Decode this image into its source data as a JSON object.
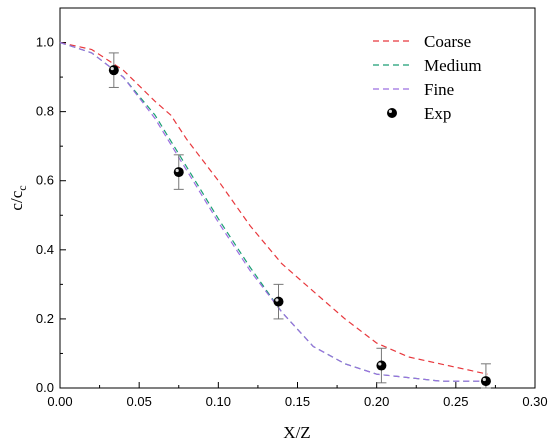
{
  "chart_data": {
    "type": "line",
    "title": "",
    "xlabel": "X/Z",
    "ylabel": {
      "main": "c/c",
      "sub": "c"
    },
    "xlim": [
      0,
      0.3
    ],
    "ylim": [
      0,
      1.1
    ],
    "xticks": [
      "0.00",
      "0.05",
      "0.10",
      "0.15",
      "0.20",
      "0.25",
      "0.30"
    ],
    "yticks": [
      "0.0",
      "0.2",
      "0.4",
      "0.6",
      "0.8",
      "1.0"
    ],
    "grid": false,
    "legend_position": "top-right",
    "series": [
      {
        "name": "Coarse",
        "style": "dashed",
        "color": "#e8383d",
        "x": [
          0.0,
          0.02,
          0.04,
          0.06,
          0.07,
          0.08,
          0.1,
          0.12,
          0.14,
          0.16,
          0.18,
          0.2,
          0.22,
          0.24,
          0.26,
          0.27
        ],
        "y": [
          1.0,
          0.98,
          0.92,
          0.83,
          0.79,
          0.72,
          0.6,
          0.47,
          0.36,
          0.28,
          0.2,
          0.13,
          0.09,
          0.07,
          0.05,
          0.04
        ]
      },
      {
        "name": "Medium",
        "style": "dashed",
        "color": "#1a9e73",
        "x": [
          0.0,
          0.02,
          0.04,
          0.06,
          0.08,
          0.1,
          0.12,
          0.14,
          0.16,
          0.18,
          0.2,
          0.22,
          0.24,
          0.26,
          0.27
        ],
        "y": [
          1.0,
          0.97,
          0.9,
          0.79,
          0.64,
          0.49,
          0.35,
          0.22,
          0.12,
          0.07,
          0.04,
          0.03,
          0.02,
          0.02,
          0.02
        ]
      },
      {
        "name": "Fine",
        "style": "dashed",
        "color": "#9c6fe0",
        "x": [
          0.0,
          0.02,
          0.04,
          0.06,
          0.08,
          0.1,
          0.12,
          0.14,
          0.16,
          0.18,
          0.2,
          0.22,
          0.24,
          0.26,
          0.27
        ],
        "y": [
          1.0,
          0.97,
          0.9,
          0.78,
          0.63,
          0.48,
          0.34,
          0.22,
          0.12,
          0.07,
          0.04,
          0.03,
          0.02,
          0.02,
          0.02
        ]
      },
      {
        "name": "Exp",
        "style": "marker",
        "color": "#000000",
        "x": [
          0.034,
          0.075,
          0.138,
          0.203,
          0.269
        ],
        "y": [
          0.92,
          0.625,
          0.25,
          0.065,
          0.02
        ],
        "error": [
          0.05,
          0.05,
          0.05,
          0.05,
          0.05
        ]
      }
    ]
  }
}
